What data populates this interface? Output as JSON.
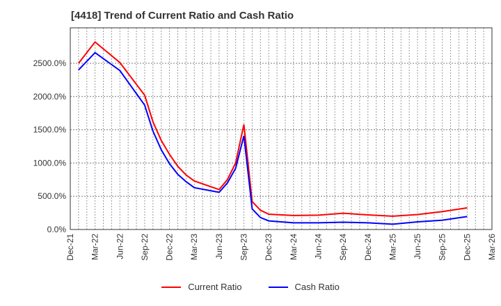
{
  "chart_data": {
    "type": "line",
    "title": "[4418]  Trend of Current Ratio and Cash Ratio",
    "xlabel": "",
    "ylabel": "",
    "ylim": [
      0,
      2900
    ],
    "grid": true,
    "legend_position": "bottom",
    "y_ticks": [
      "0.0%",
      "500.0%",
      "1000.0%",
      "1500.0%",
      "2000.0%",
      "2500.0%"
    ],
    "x_ticks": [
      "Dec-21",
      "Mar-22",
      "Jun-22",
      "Sep-22",
      "Dec-22",
      "Mar-23",
      "Jun-23",
      "Sep-23",
      "Dec-23",
      "Mar-24",
      "Jun-24",
      "Sep-24",
      "Dec-24",
      "Mar-25",
      "Jun-25",
      "Sep-25",
      "Dec-25",
      "Mar-26"
    ],
    "x": [
      "Jan-22",
      "Mar-22",
      "Jun-22",
      "Sep-22",
      "Oct-22",
      "Nov-22",
      "Dec-22",
      "Jan-23",
      "Feb-23",
      "Mar-23",
      "Jun-23",
      "Jul-23",
      "Aug-23",
      "Sep-23",
      "Oct-23",
      "Nov-23",
      "Dec-23",
      "Mar-24",
      "Jun-24",
      "Sep-24",
      "Dec-24",
      "Mar-25",
      "Jun-25",
      "Sep-25",
      "Dec-25"
    ],
    "month_index": [
      1,
      3,
      6,
      9,
      10,
      11,
      12,
      13,
      14,
      15,
      18,
      19,
      20,
      21,
      22,
      23,
      24,
      27,
      30,
      33,
      36,
      39,
      42,
      45,
      48
    ],
    "series": [
      {
        "name": "Current Ratio",
        "color": "#ff0000",
        "values": [
          2500,
          2820,
          2510,
          2020,
          1620,
          1340,
          1130,
          950,
          820,
          730,
          600,
          750,
          1000,
          1580,
          420,
          290,
          230,
          210,
          215,
          245,
          220,
          200,
          225,
          270,
          325
        ]
      },
      {
        "name": "Cash Ratio",
        "color": "#0000ff",
        "values": [
          2400,
          2660,
          2390,
          1870,
          1480,
          1200,
          990,
          830,
          720,
          630,
          560,
          700,
          920,
          1410,
          310,
          180,
          130,
          100,
          100,
          110,
          100,
          80,
          115,
          140,
          195
        ]
      }
    ]
  }
}
